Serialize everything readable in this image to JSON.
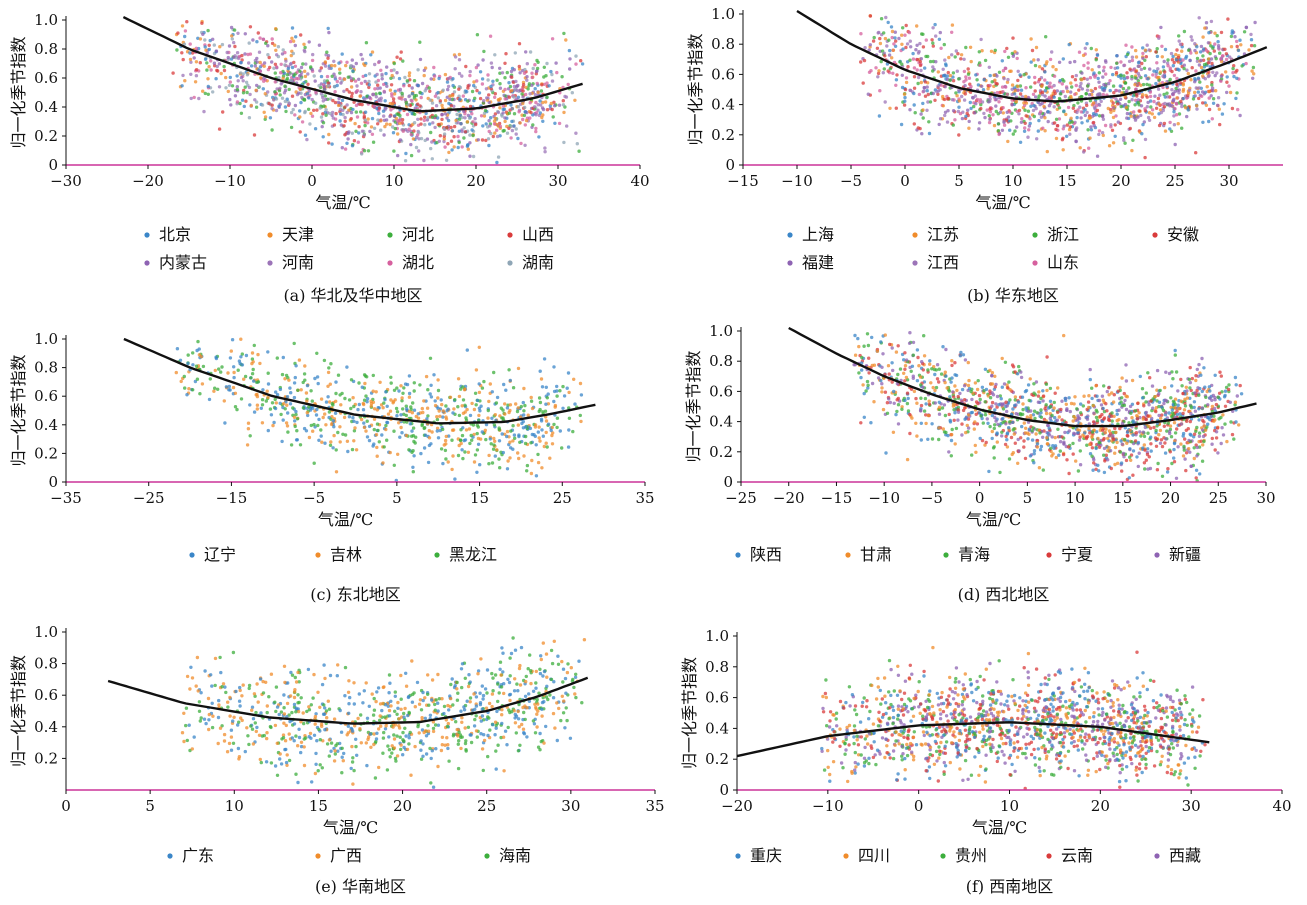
{
  "colors": {
    "series": [
      "#3a86c8",
      "#f08c2b",
      "#3cae3c",
      "#d93b3b",
      "#8e63b3",
      "#9c74b8",
      "#d6609e",
      "#8fa6b6"
    ],
    "fit_line": "#111111",
    "bottom_axis": "#cc3399"
  },
  "chart_data": [
    {
      "type": "scatter",
      "caption": "(a)  华北及华中地区",
      "xlabel": "气温/℃",
      "ylabel": "归一化季节指数",
      "xlim": [
        -30,
        40
      ],
      "ylim": [
        0,
        1
      ],
      "xticks": [
        -30,
        -20,
        -10,
        0,
        10,
        20,
        30,
        40
      ],
      "yticks": [
        0,
        0.2,
        0.4,
        0.6,
        0.8,
        1.0
      ],
      "ytick_labels": [
        "0",
        "0.2",
        "0.4",
        "0.6",
        "0.8",
        "1.0"
      ],
      "legend": [
        "北京",
        "天津",
        "河北",
        "山西",
        "内蒙古",
        "河南",
        "湖北",
        "湖南"
      ],
      "legend_columns": 4,
      "fit_curve": {
        "x": [
          -23,
          -15,
          -5,
          5,
          13,
          20,
          27,
          33
        ],
        "y": [
          1.02,
          0.8,
          0.6,
          0.45,
          0.37,
          0.39,
          0.46,
          0.56
        ]
      },
      "scatter_x_range": [
        -25,
        33
      ],
      "grid": false
    },
    {
      "type": "scatter",
      "caption": "(b)  华东地区",
      "xlabel": "气温/℃",
      "ylabel": "归一化季节指数",
      "xlim": [
        -15,
        35
      ],
      "ylim": [
        0,
        1
      ],
      "xticks": [
        -15,
        -10,
        -5,
        0,
        5,
        10,
        15,
        20,
        25,
        30
      ],
      "yticks": [
        0,
        0.2,
        0.4,
        0.6,
        0.8,
        1.0
      ],
      "ytick_labels": [
        "0",
        "0.2",
        "0.4",
        "0.6",
        "0.8",
        "1.0"
      ],
      "legend": [
        "上海",
        "江苏",
        "浙江",
        "安徽",
        "福建",
        "江西",
        "山东"
      ],
      "legend_columns": 4,
      "fit_curve": {
        "x": [
          -10,
          -5,
          0,
          5,
          10,
          14,
          20,
          25,
          30,
          33.5
        ],
        "y": [
          1.02,
          0.8,
          0.63,
          0.51,
          0.44,
          0.42,
          0.46,
          0.55,
          0.68,
          0.78
        ]
      },
      "scatter_x_range": [
        -10,
        33
      ],
      "grid": false
    },
    {
      "type": "scatter",
      "caption": "(c)  东北地区",
      "xlabel": "气温/℃",
      "ylabel": "归一化季节指数",
      "xlim": [
        -35,
        35
      ],
      "ylim": [
        0,
        1
      ],
      "xticks": [
        -35,
        -25,
        -15,
        -5,
        5,
        15,
        25,
        35
      ],
      "yticks": [
        0,
        0.2,
        0.4,
        0.6,
        0.8,
        1.0
      ],
      "ytick_labels": [
        "0",
        "0.2",
        "0.4",
        "0.6",
        "0.8",
        "1.0"
      ],
      "legend": [
        "辽宁",
        "吉林",
        "黑龙江"
      ],
      "legend_columns": 3,
      "fit_curve": {
        "x": [
          -28,
          -20,
          -10,
          0,
          10,
          18,
          24,
          29
        ],
        "y": [
          1.0,
          0.8,
          0.6,
          0.47,
          0.41,
          0.42,
          0.48,
          0.54
        ]
      },
      "scatter_x_range": [
        -30,
        28
      ],
      "grid": false
    },
    {
      "type": "scatter",
      "caption": "(d)  西北地区",
      "xlabel": "气温/℃",
      "ylabel": "归一化季节指数",
      "xlim": [
        -25,
        30
      ],
      "ylim": [
        0,
        1
      ],
      "xticks": [
        -25,
        -20,
        -15,
        -10,
        -5,
        0,
        5,
        10,
        15,
        20,
        25,
        30
      ],
      "yticks": [
        0,
        0.2,
        0.4,
        0.6,
        0.8,
        1.0
      ],
      "ytick_labels": [
        "0",
        "0.2",
        "0.4",
        "0.6",
        "0.8",
        "1.0"
      ],
      "legend": [
        "陕西",
        "甘肃",
        "青海",
        "宁夏",
        "新疆"
      ],
      "legend_columns": 5,
      "fit_curve": {
        "x": [
          -20,
          -15,
          -10,
          -5,
          0,
          5,
          10,
          15,
          20,
          25,
          29
        ],
        "y": [
          1.02,
          0.85,
          0.7,
          0.58,
          0.48,
          0.41,
          0.37,
          0.37,
          0.41,
          0.46,
          0.52
        ]
      },
      "scatter_x_range": [
        -20,
        28
      ],
      "grid": false
    },
    {
      "type": "scatter",
      "caption": "(e)  华南地区",
      "xlabel": "气温/℃",
      "ylabel": "归一化季节指数",
      "xlim": [
        0,
        35
      ],
      "ylim": [
        0,
        1
      ],
      "xticks": [
        0,
        5,
        10,
        15,
        20,
        25,
        30,
        35
      ],
      "yticks": [
        0.2,
        0.4,
        0.6,
        0.8,
        1.0
      ],
      "ytick_labels": [
        "0.2",
        "0.4",
        "0.6",
        "0.8",
        "1.0"
      ],
      "legend": [
        "广东",
        "广西",
        "海南"
      ],
      "legend_columns": 3,
      "fit_curve": {
        "x": [
          2.5,
          7,
          12,
          17,
          21,
          25,
          28,
          31
        ],
        "y": [
          0.69,
          0.55,
          0.46,
          0.42,
          0.43,
          0.5,
          0.59,
          0.71
        ]
      },
      "scatter_x_range": [
        3,
        31
      ],
      "grid": false
    },
    {
      "type": "scatter",
      "caption": "(f)  西南地区",
      "xlabel": "气温/℃",
      "ylabel": "归一化季节指数",
      "xlim": [
        -20,
        40
      ],
      "ylim": [
        0,
        1
      ],
      "xticks": [
        -20,
        -10,
        0,
        10,
        20,
        30,
        40
      ],
      "yticks": [
        0,
        0.2,
        0.4,
        0.6,
        0.8,
        1.0
      ],
      "ytick_labels": [
        "0",
        "0.2",
        "0.4",
        "0.6",
        "0.8",
        "1.0"
      ],
      "legend": [
        "重庆",
        "四川",
        "贵州",
        "云南",
        "西藏"
      ],
      "legend_columns": 5,
      "fit_curve": {
        "x": [
          -20,
          -10,
          0,
          10,
          20,
          32
        ],
        "y": [
          0.22,
          0.35,
          0.42,
          0.44,
          0.41,
          0.31
        ]
      },
      "scatter_x_range": [
        -18,
        32
      ],
      "grid": false
    }
  ]
}
